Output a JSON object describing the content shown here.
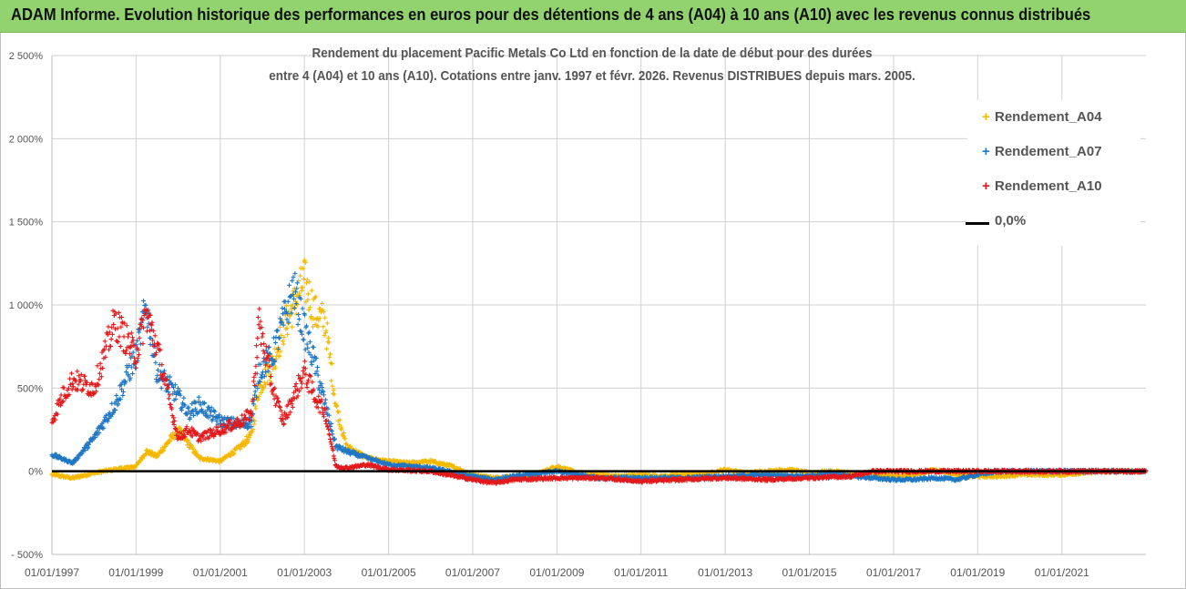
{
  "banner": {
    "title": "ADAM Informe. Evolution historique des performances en euros pour des détentions de 4 ans (A04) à 10 ans (A10) avec les revenus connus distribués"
  },
  "chart_data": {
    "type": "scatter",
    "title_line1": "Rendement du placement Pacific Metals Co Ltd en fonction de la date de début pour des durées",
    "title_line2": "entre 4 (A04) et 10 ans (A10). Cotations entre janv. 1997 et févr. 2026. Revenus DISTRIBUES depuis mars. 2005.",
    "xlabel": "",
    "ylabel": "",
    "ylim": [
      -500,
      2500
    ],
    "xlim": [
      "1997-01-01",
      "2022-12-31"
    ],
    "y_ticks": [
      "2 500%",
      "2 000%",
      "1 500%",
      "1 000%",
      "500%",
      "0%",
      "- 500%"
    ],
    "y_tick_values": [
      2500,
      2000,
      1500,
      1000,
      500,
      0,
      -500
    ],
    "x_ticks": [
      "01/01/1997",
      "01/01/1999",
      "01/01/2001",
      "01/01/2003",
      "01/01/2005",
      "01/01/2007",
      "01/01/2009",
      "01/01/2011",
      "01/01/2013",
      "01/01/2015",
      "01/01/2017",
      "01/01/2019",
      "01/01/2021"
    ],
    "grid": {
      "horizontal": true,
      "vertical": true
    },
    "legend_position": "top-right",
    "colors": {
      "A04": "#f5b800",
      "A07": "#1f77c4",
      "A10": "#e3191b",
      "zero": "#000000"
    },
    "series": [
      {
        "name": "Rendement_A04",
        "key": "A04",
        "x": [
          "1997-01-01",
          "1997-07-01",
          "1998-01-01",
          "1998-07-01",
          "1999-01-01",
          "1999-04-01",
          "1999-07-01",
          "2000-01-01",
          "2000-07-01",
          "2001-01-01",
          "2001-07-01",
          "2001-10-01",
          "2001-12-01",
          "2002-04-01",
          "2002-07-01",
          "2002-10-01",
          "2003-01-01",
          "2003-04-01",
          "2003-07-01",
          "2003-10-01",
          "2004-01-01",
          "2004-07-01",
          "2005-01-01",
          "2005-07-01",
          "2006-01-01",
          "2006-07-01",
          "2007-01-01",
          "2007-07-01",
          "2008-01-01",
          "2008-07-01",
          "2009-01-01",
          "2009-07-01",
          "2010-01-01",
          "2010-07-01",
          "2011-01-01",
          "2011-07-01",
          "2012-01-01",
          "2012-07-01",
          "2013-01-01",
          "2013-07-01",
          "2014-01-01",
          "2014-07-01",
          "2015-01-01",
          "2015-07-01",
          "2016-01-01",
          "2016-07-01",
          "2017-01-01",
          "2017-07-01",
          "2018-01-01",
          "2018-07-01",
          "2019-01-01",
          "2019-07-01",
          "2020-01-01",
          "2020-07-01",
          "2021-01-01",
          "2021-07-01",
          "2022-01-01",
          "2022-07-01",
          "2022-12-31"
        ],
        "y": [
          -20,
          -40,
          -10,
          10,
          30,
          120,
          90,
          250,
          80,
          60,
          150,
          220,
          500,
          650,
          850,
          1000,
          1150,
          950,
          900,
          400,
          150,
          80,
          60,
          50,
          60,
          30,
          -20,
          -40,
          -30,
          -20,
          30,
          -10,
          -20,
          -30,
          -20,
          -30,
          -20,
          -20,
          10,
          -10,
          0,
          10,
          -10,
          0,
          -10,
          -20,
          -30,
          -20,
          10,
          -20,
          -30,
          -30,
          -20,
          -20,
          -20,
          -10,
          0,
          0,
          0
        ]
      },
      {
        "name": "Rendement_A07",
        "key": "A07",
        "x": [
          "1997-01-01",
          "1997-07-01",
          "1998-01-01",
          "1998-04-01",
          "1998-07-01",
          "1998-10-01",
          "1999-01-01",
          "1999-04-01",
          "1999-07-01",
          "2000-01-01",
          "2000-04-01",
          "2000-07-01",
          "2001-01-01",
          "2001-07-01",
          "2001-10-01",
          "2001-12-01",
          "2002-04-01",
          "2002-07-01",
          "2002-10-01",
          "2003-01-01",
          "2003-04-01",
          "2003-07-01",
          "2003-10-01",
          "2004-01-01",
          "2004-07-01",
          "2005-01-01",
          "2006-01-01",
          "2007-01-01",
          "2007-07-01",
          "2008-01-01",
          "2009-01-01",
          "2010-01-01",
          "2011-01-01",
          "2012-01-01",
          "2013-01-01",
          "2014-01-01",
          "2015-01-01",
          "2015-07-01",
          "2016-01-01",
          "2016-07-01",
          "2017-01-01",
          "2017-07-01",
          "2018-01-01",
          "2018-07-01",
          "2019-01-01",
          "2019-07-01",
          "2020-01-01",
          "2021-01-01",
          "2022-01-01",
          "2022-12-31"
        ],
        "y": [
          100,
          50,
          200,
          300,
          400,
          550,
          700,
          1000,
          600,
          450,
          350,
          400,
          300,
          280,
          300,
          600,
          700,
          900,
          1100,
          850,
          650,
          400,
          150,
          120,
          80,
          40,
          20,
          -30,
          -50,
          -30,
          0,
          -40,
          -40,
          -40,
          -30,
          -20,
          -30,
          -10,
          -30,
          -40,
          -50,
          -50,
          -40,
          -50,
          -20,
          0,
          0,
          0,
          0,
          0
        ]
      },
      {
        "name": "Rendement_A10",
        "key": "A10",
        "x": [
          "1997-01-01",
          "1997-04-01",
          "1997-07-01",
          "1998-01-01",
          "1998-04-01",
          "1998-07-01",
          "1998-10-01",
          "1999-01-01",
          "1999-04-01",
          "1999-07-01",
          "2000-01-01",
          "2000-04-01",
          "2000-07-01",
          "2001-01-01",
          "2001-07-01",
          "2001-10-01",
          "2001-12-01",
          "2002-04-01",
          "2002-07-01",
          "2002-10-01",
          "2003-01-01",
          "2003-04-01",
          "2003-07-01",
          "2003-10-01",
          "2004-01-01",
          "2004-07-01",
          "2005-01-01",
          "2006-01-01",
          "2007-01-01",
          "2007-07-01",
          "2008-01-01",
          "2009-01-01",
          "2010-01-01",
          "2011-01-01",
          "2012-01-01",
          "2013-01-01",
          "2014-01-01",
          "2015-01-01",
          "2016-01-01",
          "2016-07-01",
          "2017-01-01",
          "2018-01-01",
          "2019-01-01",
          "2020-01-01",
          "2021-01-01",
          "2022-01-01",
          "2022-12-31"
        ],
        "y": [
          300,
          450,
          550,
          500,
          700,
          900,
          800,
          700,
          950,
          750,
          200,
          250,
          200,
          250,
          300,
          350,
          900,
          500,
          300,
          450,
          600,
          450,
          350,
          30,
          20,
          40,
          10,
          0,
          -50,
          -70,
          -50,
          -40,
          -40,
          -60,
          -50,
          -40,
          -50,
          -40,
          -30,
          0,
          0,
          0,
          0,
          0,
          0,
          0,
          0
        ]
      }
    ],
    "reference_line": {
      "name": "0,0%",
      "y": 0
    }
  }
}
